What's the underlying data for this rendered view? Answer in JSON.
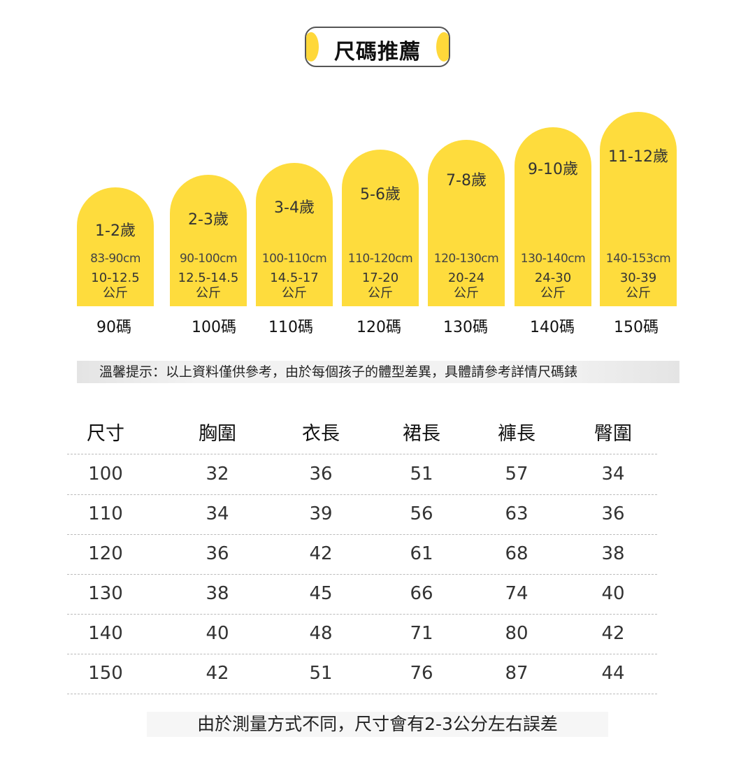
{
  "title": "尺碼推薦",
  "age_bars": [
    {
      "age": "1-2歲",
      "height": "83-90cm",
      "weight": "10-12.5",
      "weight_unit": "公斤",
      "size": "90碼"
    },
    {
      "age": "2-3歲",
      "height": "90-100cm",
      "weight": "12.5-14.5",
      "weight_unit": "公斤",
      "size": "100碼"
    },
    {
      "age": "3-4歲",
      "height": "100-110cm",
      "weight": "14.5-17",
      "weight_unit": "公斤",
      "size": "110碼"
    },
    {
      "age": "5-6歲",
      "height": "110-120cm",
      "weight": "17-20",
      "weight_unit": "公斤",
      "size": "120碼"
    },
    {
      "age": "7-8歲",
      "height": "120-130cm",
      "weight": "20-24",
      "weight_unit": "公斤",
      "size": "130碼"
    },
    {
      "age": "9-10歲",
      "height": "130-140cm",
      "weight": "24-30",
      "weight_unit": "公斤",
      "size": "140碼"
    },
    {
      "age": "11-12歲",
      "height": "140-153cm",
      "weight": "30-39",
      "weight_unit": "公斤",
      "size": "150碼"
    }
  ],
  "notice": "溫馨提示：以上資料僅供參考，由於每個孩子的體型差異，具體請參考詳情尺碼錶",
  "table": {
    "headers": [
      "尺寸",
      "胸圍",
      "衣長",
      "裙長",
      "褲長",
      "臀圍"
    ],
    "rows": [
      [
        "100",
        "32",
        "36",
        "51",
        "57",
        "34"
      ],
      [
        "110",
        "34",
        "39",
        "56",
        "63",
        "36"
      ],
      [
        "120",
        "36",
        "42",
        "61",
        "68",
        "38"
      ],
      [
        "130",
        "38",
        "45",
        "66",
        "74",
        "40"
      ],
      [
        "140",
        "40",
        "48",
        "71",
        "80",
        "42"
      ],
      [
        "150",
        "42",
        "51",
        "76",
        "87",
        "44"
      ]
    ]
  },
  "footnote": "由於測量方式不同，尺寸會有2-3公分左右誤差",
  "colors": {
    "bar": "#fedc3d",
    "title_cap": "#ffd83a"
  }
}
